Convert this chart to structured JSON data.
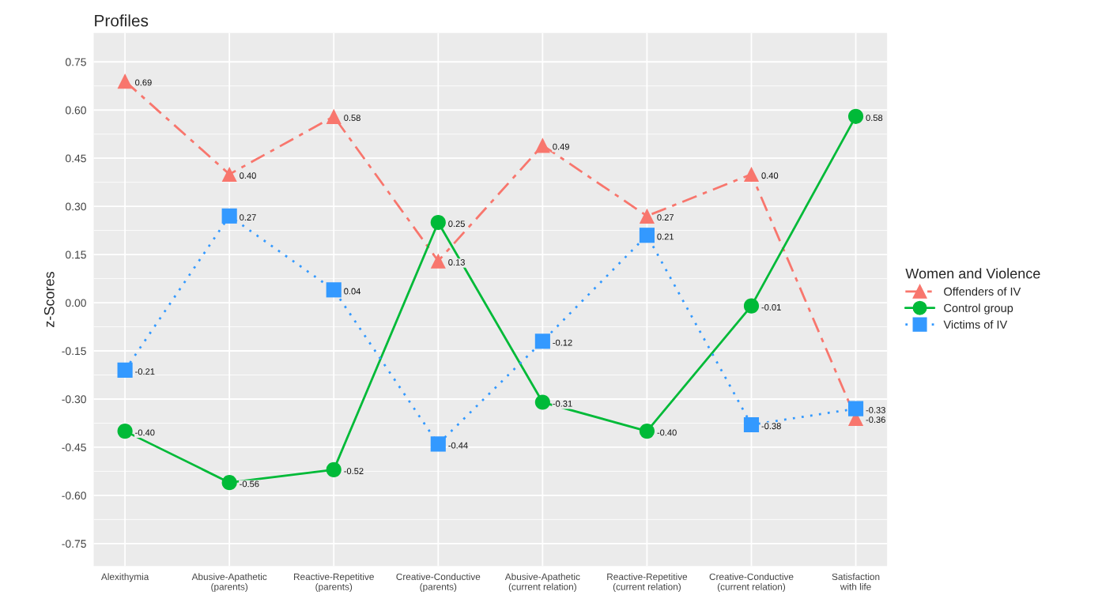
{
  "chart_data": {
    "type": "line",
    "title": "Profiles",
    "ylabel": "z-Scores",
    "legend_title": "Women and Violence",
    "categories": [
      "Alexithymia",
      "Abusive-Apathetic\n(parents)",
      "Reactive-Repetitive\n(parents)",
      "Creative-Conductive\n(parents)",
      "Abusive-Apathetic\n(current relation)",
      "Reactive-Repetitive\n(current relation)",
      "Creative-Conductive\n(current relation)",
      "Satisfaction\nwith life"
    ],
    "series": [
      {
        "name": "Offenders of IV",
        "color": "#f8766d",
        "marker": "triangle",
        "line_style": "dashed",
        "values": [
          0.69,
          0.4,
          0.58,
          0.13,
          0.49,
          0.27,
          0.4,
          -0.36
        ],
        "value_labels": [
          "0.69",
          "0.40",
          "0.58",
          "0.13",
          "0.49",
          "0.27",
          "0.40",
          "-0.36"
        ]
      },
      {
        "name": "Control group",
        "color": "#00ba38",
        "marker": "circle",
        "line_style": "solid",
        "values": [
          -0.4,
          -0.56,
          -0.52,
          0.25,
          -0.31,
          -0.4,
          -0.01,
          0.58
        ],
        "value_labels": [
          "-0.40",
          "-0.56",
          "-0.52",
          "0.25",
          "-0.31",
          "-0.40",
          "-0.01",
          "0.58"
        ]
      },
      {
        "name": "Victims of IV",
        "color": "#3399ff",
        "marker": "square",
        "line_style": "dotted",
        "values": [
          -0.21,
          0.27,
          0.04,
          -0.44,
          -0.12,
          0.21,
          -0.38,
          -0.33
        ],
        "value_labels": [
          "-0.21",
          "0.27",
          "0.04",
          "-0.44",
          "-0.12",
          "0.21",
          "-0.38",
          "-0.33"
        ]
      }
    ],
    "ylim": [
      -0.82,
      0.84
    ],
    "yticks": [
      {
        "value": -0.75,
        "label": "-0.75"
      },
      {
        "value": -0.6,
        "label": "-0.60"
      },
      {
        "value": -0.45,
        "label": "-0.45"
      },
      {
        "value": -0.3,
        "label": "-0.30"
      },
      {
        "value": -0.15,
        "label": "-0.15"
      },
      {
        "value": 0,
        "label": "0.00"
      },
      {
        "value": 0.15,
        "label": "0.15"
      },
      {
        "value": 0.3,
        "label": "0.30"
      },
      {
        "value": 0.45,
        "label": "0.45"
      },
      {
        "value": 0.6,
        "label": "0.60"
      },
      {
        "value": 0.75,
        "label": "0.75"
      }
    ],
    "grid": true,
    "legend": "right"
  }
}
